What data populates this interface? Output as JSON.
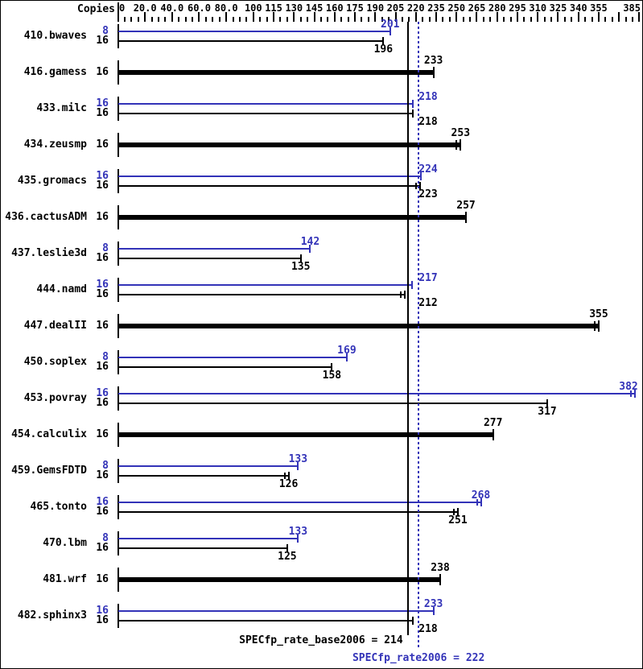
{
  "header": {
    "copies_label": "Copies"
  },
  "colors": {
    "peak": "#3333b8",
    "base": "#000000",
    "background": "#ffffff"
  },
  "chart_data": {
    "type": "bar",
    "orientation": "horizontal",
    "title": "",
    "xlabel": "",
    "ylabel": "",
    "x_axis": {
      "range": [
        0,
        385
      ],
      "minor_tick_step": 5,
      "major_ticks": [
        {
          "value": 0,
          "label": "0"
        },
        {
          "value": 20,
          "label": "20.0"
        },
        {
          "value": 40,
          "label": "40.0"
        },
        {
          "value": 60,
          "label": "60.0"
        },
        {
          "value": 80,
          "label": "80.0"
        },
        {
          "value": 100,
          "label": "100"
        },
        {
          "value": 115,
          "label": "115"
        },
        {
          "value": 130,
          "label": "130"
        },
        {
          "value": 145,
          "label": "145"
        },
        {
          "value": 160,
          "label": "160"
        },
        {
          "value": 175,
          "label": "175"
        },
        {
          "value": 190,
          "label": "190"
        },
        {
          "value": 205,
          "label": "205"
        },
        {
          "value": 220,
          "label": "220"
        },
        {
          "value": 235,
          "label": "235"
        },
        {
          "value": 250,
          "label": "250"
        },
        {
          "value": 265,
          "label": "265"
        },
        {
          "value": 280,
          "label": "280"
        },
        {
          "value": 295,
          "label": "295"
        },
        {
          "value": 310,
          "label": "310"
        },
        {
          "value": 325,
          "label": "325"
        },
        {
          "value": 340,
          "label": "340"
        },
        {
          "value": 355,
          "label": "355"
        },
        {
          "value": 370,
          "label": ""
        },
        {
          "value": 385,
          "label": "385"
        }
      ]
    },
    "benchmarks": [
      {
        "name": "410.bwaves",
        "bars": [
          {
            "series": "peak",
            "copies": 8,
            "value": 201
          },
          {
            "series": "base",
            "copies": 16,
            "value": 196
          }
        ]
      },
      {
        "name": "416.gamess",
        "bars": [
          {
            "series": "base",
            "copies": 16,
            "value": 233,
            "thick": true
          }
        ]
      },
      {
        "name": "433.milc",
        "bars": [
          {
            "series": "peak",
            "copies": 16,
            "value": 218
          },
          {
            "series": "base",
            "copies": 16,
            "value": 218
          }
        ]
      },
      {
        "name": "434.zeusmp",
        "bars": [
          {
            "series": "base",
            "copies": 16,
            "value": 253,
            "thick": true,
            "double_cap": true
          }
        ]
      },
      {
        "name": "435.gromacs",
        "bars": [
          {
            "series": "peak",
            "copies": 16,
            "value": 224
          },
          {
            "series": "base",
            "copies": 16,
            "value": 223,
            "double_cap": true
          }
        ]
      },
      {
        "name": "436.cactusADM",
        "bars": [
          {
            "series": "base",
            "copies": 16,
            "value": 257,
            "thick": true
          }
        ]
      },
      {
        "name": "437.leslie3d",
        "bars": [
          {
            "series": "peak",
            "copies": 8,
            "value": 142
          },
          {
            "series": "base",
            "copies": 16,
            "value": 135
          }
        ]
      },
      {
        "name": "444.namd",
        "bars": [
          {
            "series": "peak",
            "copies": 16,
            "value": 217,
            "double_cap": true
          },
          {
            "series": "base",
            "copies": 16,
            "value": 212,
            "double_cap": true
          }
        ]
      },
      {
        "name": "447.dealII",
        "bars": [
          {
            "series": "base",
            "copies": 16,
            "value": 355,
            "thick": true,
            "double_cap": true
          }
        ]
      },
      {
        "name": "450.soplex",
        "bars": [
          {
            "series": "peak",
            "copies": 8,
            "value": 169
          },
          {
            "series": "base",
            "copies": 16,
            "value": 158
          }
        ]
      },
      {
        "name": "453.povray",
        "bars": [
          {
            "series": "peak",
            "copies": 16,
            "value": 382,
            "double_cap": true
          },
          {
            "series": "base",
            "copies": 16,
            "value": 317
          }
        ]
      },
      {
        "name": "454.calculix",
        "bars": [
          {
            "series": "base",
            "copies": 16,
            "value": 277,
            "thick": true
          }
        ]
      },
      {
        "name": "459.GemsFDTD",
        "bars": [
          {
            "series": "peak",
            "copies": 8,
            "value": 133
          },
          {
            "series": "base",
            "copies": 16,
            "value": 126,
            "double_cap": true
          }
        ]
      },
      {
        "name": "465.tonto",
        "bars": [
          {
            "series": "peak",
            "copies": 16,
            "value": 268,
            "double_cap": true
          },
          {
            "series": "base",
            "copies": 16,
            "value": 251,
            "double_cap": true
          }
        ]
      },
      {
        "name": "470.lbm",
        "bars": [
          {
            "series": "peak",
            "copies": 8,
            "value": 133
          },
          {
            "series": "base",
            "copies": 16,
            "value": 125
          }
        ]
      },
      {
        "name": "481.wrf",
        "bars": [
          {
            "series": "base",
            "copies": 16,
            "value": 238,
            "thick": true
          }
        ]
      },
      {
        "name": "482.sphinx3",
        "bars": [
          {
            "series": "peak",
            "copies": 16,
            "value": 233
          },
          {
            "series": "base",
            "copies": 16,
            "value": 218
          }
        ]
      }
    ],
    "reference_lines": [
      {
        "series": "base",
        "value": 214,
        "style": "solid",
        "label": "SPECfp_rate_base2006 = 214"
      },
      {
        "series": "peak",
        "value": 222,
        "style": "dotted",
        "label": "SPECfp_rate2006 = 222"
      }
    ]
  }
}
